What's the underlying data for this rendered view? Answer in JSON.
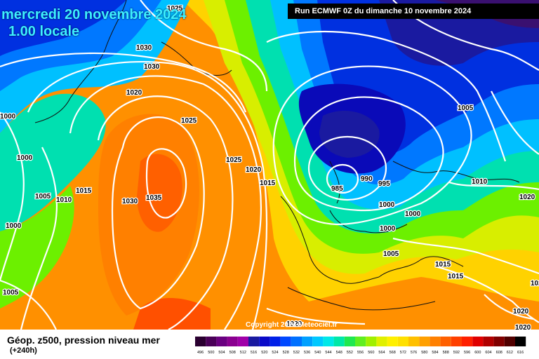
{
  "title": "mercredi 20 novembre 2024",
  "subtitle": "1.00 locale",
  "run_info": "Run ECMWF 0Z du dimanche 10 novembre 2024",
  "copyright": "Copyright 2024 Meteociel.fr",
  "field_label": "Géop. z500, pression niveau mer",
  "forecast_hour": "(+240h)",
  "isobar_labels": [
    {
      "v": "1025"
    },
    {
      "v": "1030"
    },
    {
      "v": "1030"
    },
    {
      "v": "1020"
    },
    {
      "v": "1000"
    },
    {
      "v": "1000"
    },
    {
      "v": "1005"
    },
    {
      "v": "1010"
    },
    {
      "v": "1015"
    },
    {
      "v": "1000"
    },
    {
      "v": "1030"
    },
    {
      "v": "1035"
    },
    {
      "v": "1025"
    },
    {
      "v": "1020"
    },
    {
      "v": "1015"
    },
    {
      "v": "1005"
    },
    {
      "v": "985"
    },
    {
      "v": "990"
    },
    {
      "v": "995"
    },
    {
      "v": "1000"
    },
    {
      "v": "1000"
    },
    {
      "v": "1000"
    },
    {
      "v": "1005"
    },
    {
      "v": "1010"
    },
    {
      "v": "1020"
    },
    {
      "v": "1015"
    },
    {
      "v": "1015"
    },
    {
      "v": "1020"
    },
    {
      "v": "1020"
    },
    {
      "v": "1020"
    },
    {
      "v": "1020"
    },
    {
      "v": "1005"
    },
    {
      "v": "1025"
    }
  ],
  "scale_values": [
    "496",
    "500",
    "504",
    "508",
    "512",
    "516",
    "520",
    "524",
    "528",
    "532",
    "536",
    "540",
    "544",
    "548",
    "552",
    "556",
    "560",
    "564",
    "568",
    "572",
    "576",
    "580",
    "584",
    "588",
    "592",
    "596",
    "600",
    "604",
    "608",
    "612",
    "616"
  ],
  "scale_colors": [
    "#2a0030",
    "#4a0058",
    "#6a0080",
    "#8a0090",
    "#a000a8",
    "#1a1aa0",
    "#0a0ac8",
    "#0020e8",
    "#0048ff",
    "#0070ff",
    "#00a0ff",
    "#00c8ff",
    "#00e8e8",
    "#00e8a8",
    "#20e850",
    "#60ee20",
    "#a0f000",
    "#e0f000",
    "#fff000",
    "#ffe000",
    "#ffc000",
    "#ffa000",
    "#ff8000",
    "#ff6000",
    "#ff4000",
    "#ff2000",
    "#e00000",
    "#b00000",
    "#800000",
    "#500000",
    "#000000"
  ]
}
